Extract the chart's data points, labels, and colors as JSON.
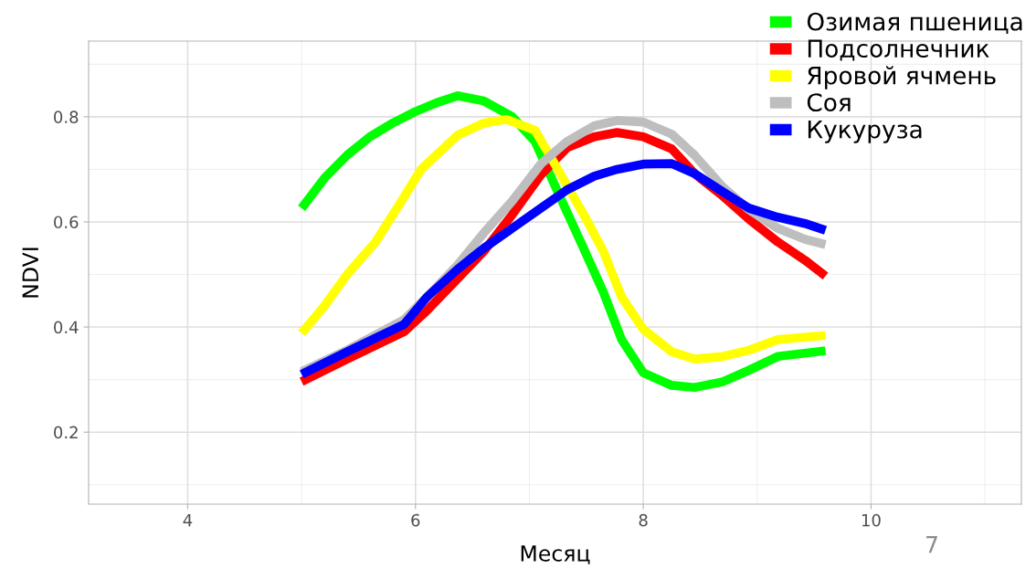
{
  "chart_data": {
    "type": "line",
    "xlabel": "Месяц",
    "ylabel": "NDVI",
    "xlim": [
      3.13,
      11.32
    ],
    "ylim": [
      0.063,
      0.944
    ],
    "xticks": [
      4,
      6,
      8,
      10
    ],
    "yticks": [
      0.2,
      0.4,
      0.6,
      0.8
    ],
    "grid": true,
    "legend": "top right",
    "line_style": "solid",
    "marker": "none",
    "annotations": [
      "7"
    ],
    "series": [
      {
        "name": "Озимая пшеница",
        "color": "#00ff00",
        "x": [
          5.0,
          5.2,
          5.4,
          5.6,
          5.8,
          6.0,
          6.2,
          6.37,
          6.6,
          6.85,
          7.05,
          7.25,
          7.45,
          7.65,
          7.81,
          8.0,
          8.25,
          8.45,
          8.7,
          8.93,
          9.18,
          9.6
        ],
        "values": [
          0.626,
          0.683,
          0.727,
          0.762,
          0.788,
          0.81,
          0.828,
          0.84,
          0.83,
          0.8,
          0.753,
          0.657,
          0.562,
          0.466,
          0.376,
          0.313,
          0.289,
          0.285,
          0.296,
          0.318,
          0.344,
          0.355
        ]
      },
      {
        "name": "Подсолнечник",
        "color": "#ff0000",
        "x": [
          5.0,
          5.4,
          5.9,
          6.1,
          6.37,
          6.6,
          6.85,
          7.1,
          7.33,
          7.57,
          7.77,
          8.0,
          8.25,
          8.45,
          8.7,
          8.93,
          9.18,
          9.42,
          9.6
        ],
        "values": [
          0.296,
          0.339,
          0.391,
          0.431,
          0.492,
          0.544,
          0.614,
          0.689,
          0.741,
          0.762,
          0.77,
          0.762,
          0.739,
          0.692,
          0.649,
          0.605,
          0.562,
          0.527,
          0.497
        ]
      },
      {
        "name": "Яровой ячмень",
        "color": "#ffff00",
        "x": [
          5.0,
          5.2,
          5.4,
          5.65,
          5.85,
          6.05,
          6.37,
          6.6,
          6.8,
          7.05,
          7.25,
          7.5,
          7.65,
          7.81,
          8.0,
          8.25,
          8.45,
          8.7,
          8.93,
          9.18,
          9.6
        ],
        "values": [
          0.388,
          0.44,
          0.5,
          0.562,
          0.63,
          0.7,
          0.765,
          0.788,
          0.795,
          0.774,
          0.7,
          0.605,
          0.544,
          0.457,
          0.396,
          0.353,
          0.339,
          0.344,
          0.356,
          0.376,
          0.384
        ]
      },
      {
        "name": "Соя",
        "color": "#bebebe",
        "x": [
          5.0,
          5.4,
          5.9,
          6.1,
          6.37,
          6.6,
          6.85,
          7.1,
          7.33,
          7.57,
          7.77,
          8.0,
          8.25,
          8.45,
          8.7,
          8.93,
          9.18,
          9.42,
          9.6
        ],
        "values": [
          0.315,
          0.356,
          0.414,
          0.457,
          0.518,
          0.579,
          0.64,
          0.71,
          0.753,
          0.783,
          0.793,
          0.79,
          0.767,
          0.727,
          0.666,
          0.623,
          0.588,
          0.567,
          0.557
        ]
      },
      {
        "name": "Кукуруза",
        "color": "#0000ff",
        "x": [
          5.0,
          5.4,
          5.9,
          6.1,
          6.37,
          6.6,
          6.85,
          7.1,
          7.33,
          7.57,
          7.77,
          8.0,
          8.25,
          8.45,
          8.7,
          8.93,
          9.18,
          9.42,
          9.6
        ],
        "values": [
          0.31,
          0.353,
          0.405,
          0.457,
          0.51,
          0.55,
          0.588,
          0.626,
          0.661,
          0.687,
          0.7,
          0.71,
          0.711,
          0.692,
          0.657,
          0.626,
          0.609,
          0.597,
          0.584
        ]
      }
    ]
  }
}
